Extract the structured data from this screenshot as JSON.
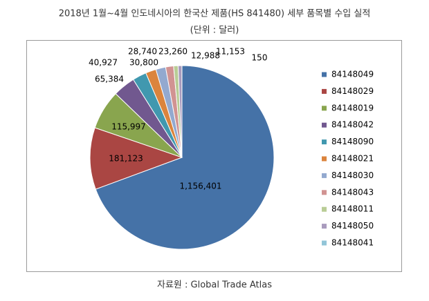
{
  "chart_data": {
    "type": "pie",
    "title": "2018년 1월~4월 인도네시아의 한국산 제품(HS 841480) 세부 품목별 수입 실적",
    "subtitle": "(단위 : 달러)",
    "source": "자료원 : Global Trade Atlas",
    "categories": [
      "84148049",
      "84148029",
      "84148019",
      "84148042",
      "84148090",
      "84148021",
      "84148030",
      "84148043",
      "84148011",
      "84148050",
      "84148041"
    ],
    "values": [
      1156401,
      181123,
      115997,
      65384,
      40927,
      30800,
      28740,
      23260,
      12988,
      11153,
      150
    ],
    "value_labels": [
      "1,156,401",
      "181,123",
      "115,997",
      "65,384",
      "40,927",
      "30,800",
      "28,740",
      "23,260",
      "12,988",
      "11,153",
      "150"
    ],
    "colors": [
      "#4572A7",
      "#AA4643",
      "#89A54E",
      "#71588F",
      "#4198AF",
      "#DB843D",
      "#93A9CF",
      "#D19392",
      "#B9CD96",
      "#A99BBD",
      "#92C5D8"
    ],
    "legend": "right"
  }
}
